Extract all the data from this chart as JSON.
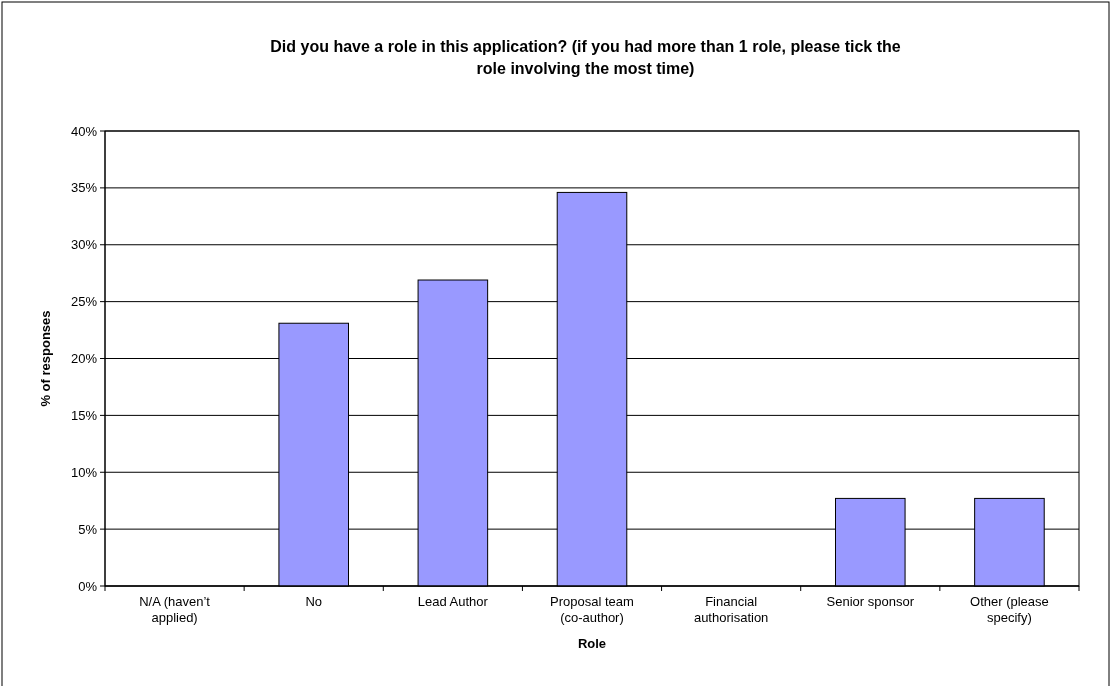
{
  "chart_data": {
    "type": "bar",
    "title": "Did you have a role in this application? (if you had more than 1 role, please tick the role involving the most time)",
    "xlabel": "Role",
    "ylabel": "% of responses",
    "categories": [
      "N/A (haven’t applied)",
      "No",
      "Lead Author",
      "Proposal team (co-author)",
      "Financial authorisation",
      "Senior sponsor",
      "Other (please specify)"
    ],
    "values": [
      0,
      23.1,
      26.9,
      34.6,
      0,
      7.7,
      7.7
    ],
    "color": "#9999ff",
    "ylim": [
      0,
      40
    ],
    "yticks": [
      {
        "value": 0,
        "label": "0%"
      },
      {
        "value": 5,
        "label": "5%"
      },
      {
        "value": 10,
        "label": "10%"
      },
      {
        "value": 15,
        "label": "15%"
      },
      {
        "value": 20,
        "label": "20%"
      },
      {
        "value": 25,
        "label": "25%"
      },
      {
        "value": 30,
        "label": "30%"
      },
      {
        "value": 35,
        "label": "35%"
      },
      {
        "value": 40,
        "label": "40%"
      }
    ],
    "grid": "y"
  }
}
